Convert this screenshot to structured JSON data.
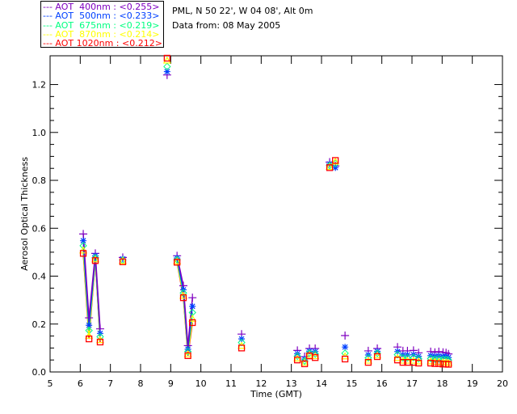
{
  "header": {
    "location": "PML, N 50 22', W 04 08', Alt 0m",
    "date_line": "Data from: 08 May 2005"
  },
  "chart_data": {
    "type": "scatter",
    "title": "",
    "xlabel": "Time (GMT)",
    "ylabel": "Aerosol Optical Thickness",
    "xlim": [
      5,
      20
    ],
    "ylim": [
      0,
      1.32
    ],
    "xticks": [
      "5",
      "6",
      "7",
      "8",
      "9",
      "10",
      "11",
      "12",
      "13",
      "14",
      "15",
      "16",
      "17",
      "18",
      "19",
      "20"
    ],
    "yticks": [
      "0.0",
      "0.2",
      "0.4",
      "0.6",
      "0.8",
      "1.0",
      "1.2"
    ],
    "legend_position": "top-left",
    "x": [
      6.1,
      6.29,
      6.5,
      6.66,
      7.41,
      8.88,
      9.21,
      9.42,
      9.57,
      9.72,
      11.35,
      13.2,
      13.44,
      13.6,
      13.79,
      14.27,
      14.46,
      14.78,
      15.55,
      15.85,
      16.52,
      16.7,
      16.85,
      17.05,
      17.22,
      17.62,
      17.76,
      17.89,
      18.03,
      18.13,
      18.21
    ],
    "series": [
      {
        "name": "AOT  400nm",
        "mean": "<0.255>",
        "color": "#7f00c0",
        "marker": "plus",
        "values": [
          0.576,
          0.226,
          0.495,
          0.18,
          0.478,
          1.24,
          0.485,
          0.36,
          0.11,
          0.31,
          0.158,
          0.09,
          0.064,
          0.098,
          0.098,
          0.876,
          0.86,
          0.152,
          0.088,
          0.098,
          0.104,
          0.088,
          0.088,
          0.09,
          0.08,
          0.085,
          0.082,
          0.085,
          0.082,
          0.08,
          0.075
        ]
      },
      {
        "name": "AOT  500nm",
        "mean": "<0.233>",
        "color": "#0040ff",
        "marker": "star",
        "values": [
          0.548,
          0.195,
          0.485,
          0.161,
          0.472,
          1.254,
          0.476,
          0.343,
          0.095,
          0.274,
          0.138,
          0.076,
          0.054,
          0.087,
          0.085,
          0.868,
          0.853,
          0.104,
          0.071,
          0.086,
          0.085,
          0.071,
          0.071,
          0.072,
          0.065,
          0.068,
          0.066,
          0.067,
          0.065,
          0.064,
          0.06
        ]
      },
      {
        "name": "AOT  675nm",
        "mean": "<0.219>",
        "color": "#00ff80",
        "marker": "diamond",
        "values": [
          0.527,
          0.173,
          0.477,
          0.147,
          0.467,
          1.275,
          0.469,
          0.33,
          0.085,
          0.248,
          0.123,
          0.066,
          0.046,
          0.079,
          0.075,
          0.862,
          0.87,
          0.078,
          0.059,
          0.078,
          0.072,
          0.059,
          0.059,
          0.06,
          0.055,
          0.056,
          0.054,
          0.055,
          0.053,
          0.052,
          0.05
        ]
      },
      {
        "name": "AOT  870nm",
        "mean": "<0.214>",
        "color": "#ffff00",
        "marker": "triangle",
        "values": [
          0.507,
          0.151,
          0.47,
          0.133,
          0.463,
          1.3,
          0.462,
          0.318,
          0.074,
          0.222,
          0.109,
          0.056,
          0.039,
          0.071,
          0.066,
          0.856,
          0.878,
          0.065,
          0.047,
          0.069,
          0.058,
          0.047,
          0.047,
          0.047,
          0.044,
          0.044,
          0.042,
          0.042,
          0.04,
          0.04,
          0.038
        ]
      },
      {
        "name": "AOT 1020nm",
        "mean": "<0.212>",
        "color": "#ff0000",
        "marker": "square",
        "values": [
          0.495,
          0.138,
          0.465,
          0.125,
          0.46,
          1.31,
          0.458,
          0.31,
          0.068,
          0.206,
          0.1,
          0.05,
          0.034,
          0.067,
          0.06,
          0.853,
          0.883,
          0.054,
          0.04,
          0.064,
          0.05,
          0.04,
          0.04,
          0.04,
          0.037,
          0.037,
          0.035,
          0.035,
          0.033,
          0.033,
          0.032
        ]
      }
    ]
  }
}
